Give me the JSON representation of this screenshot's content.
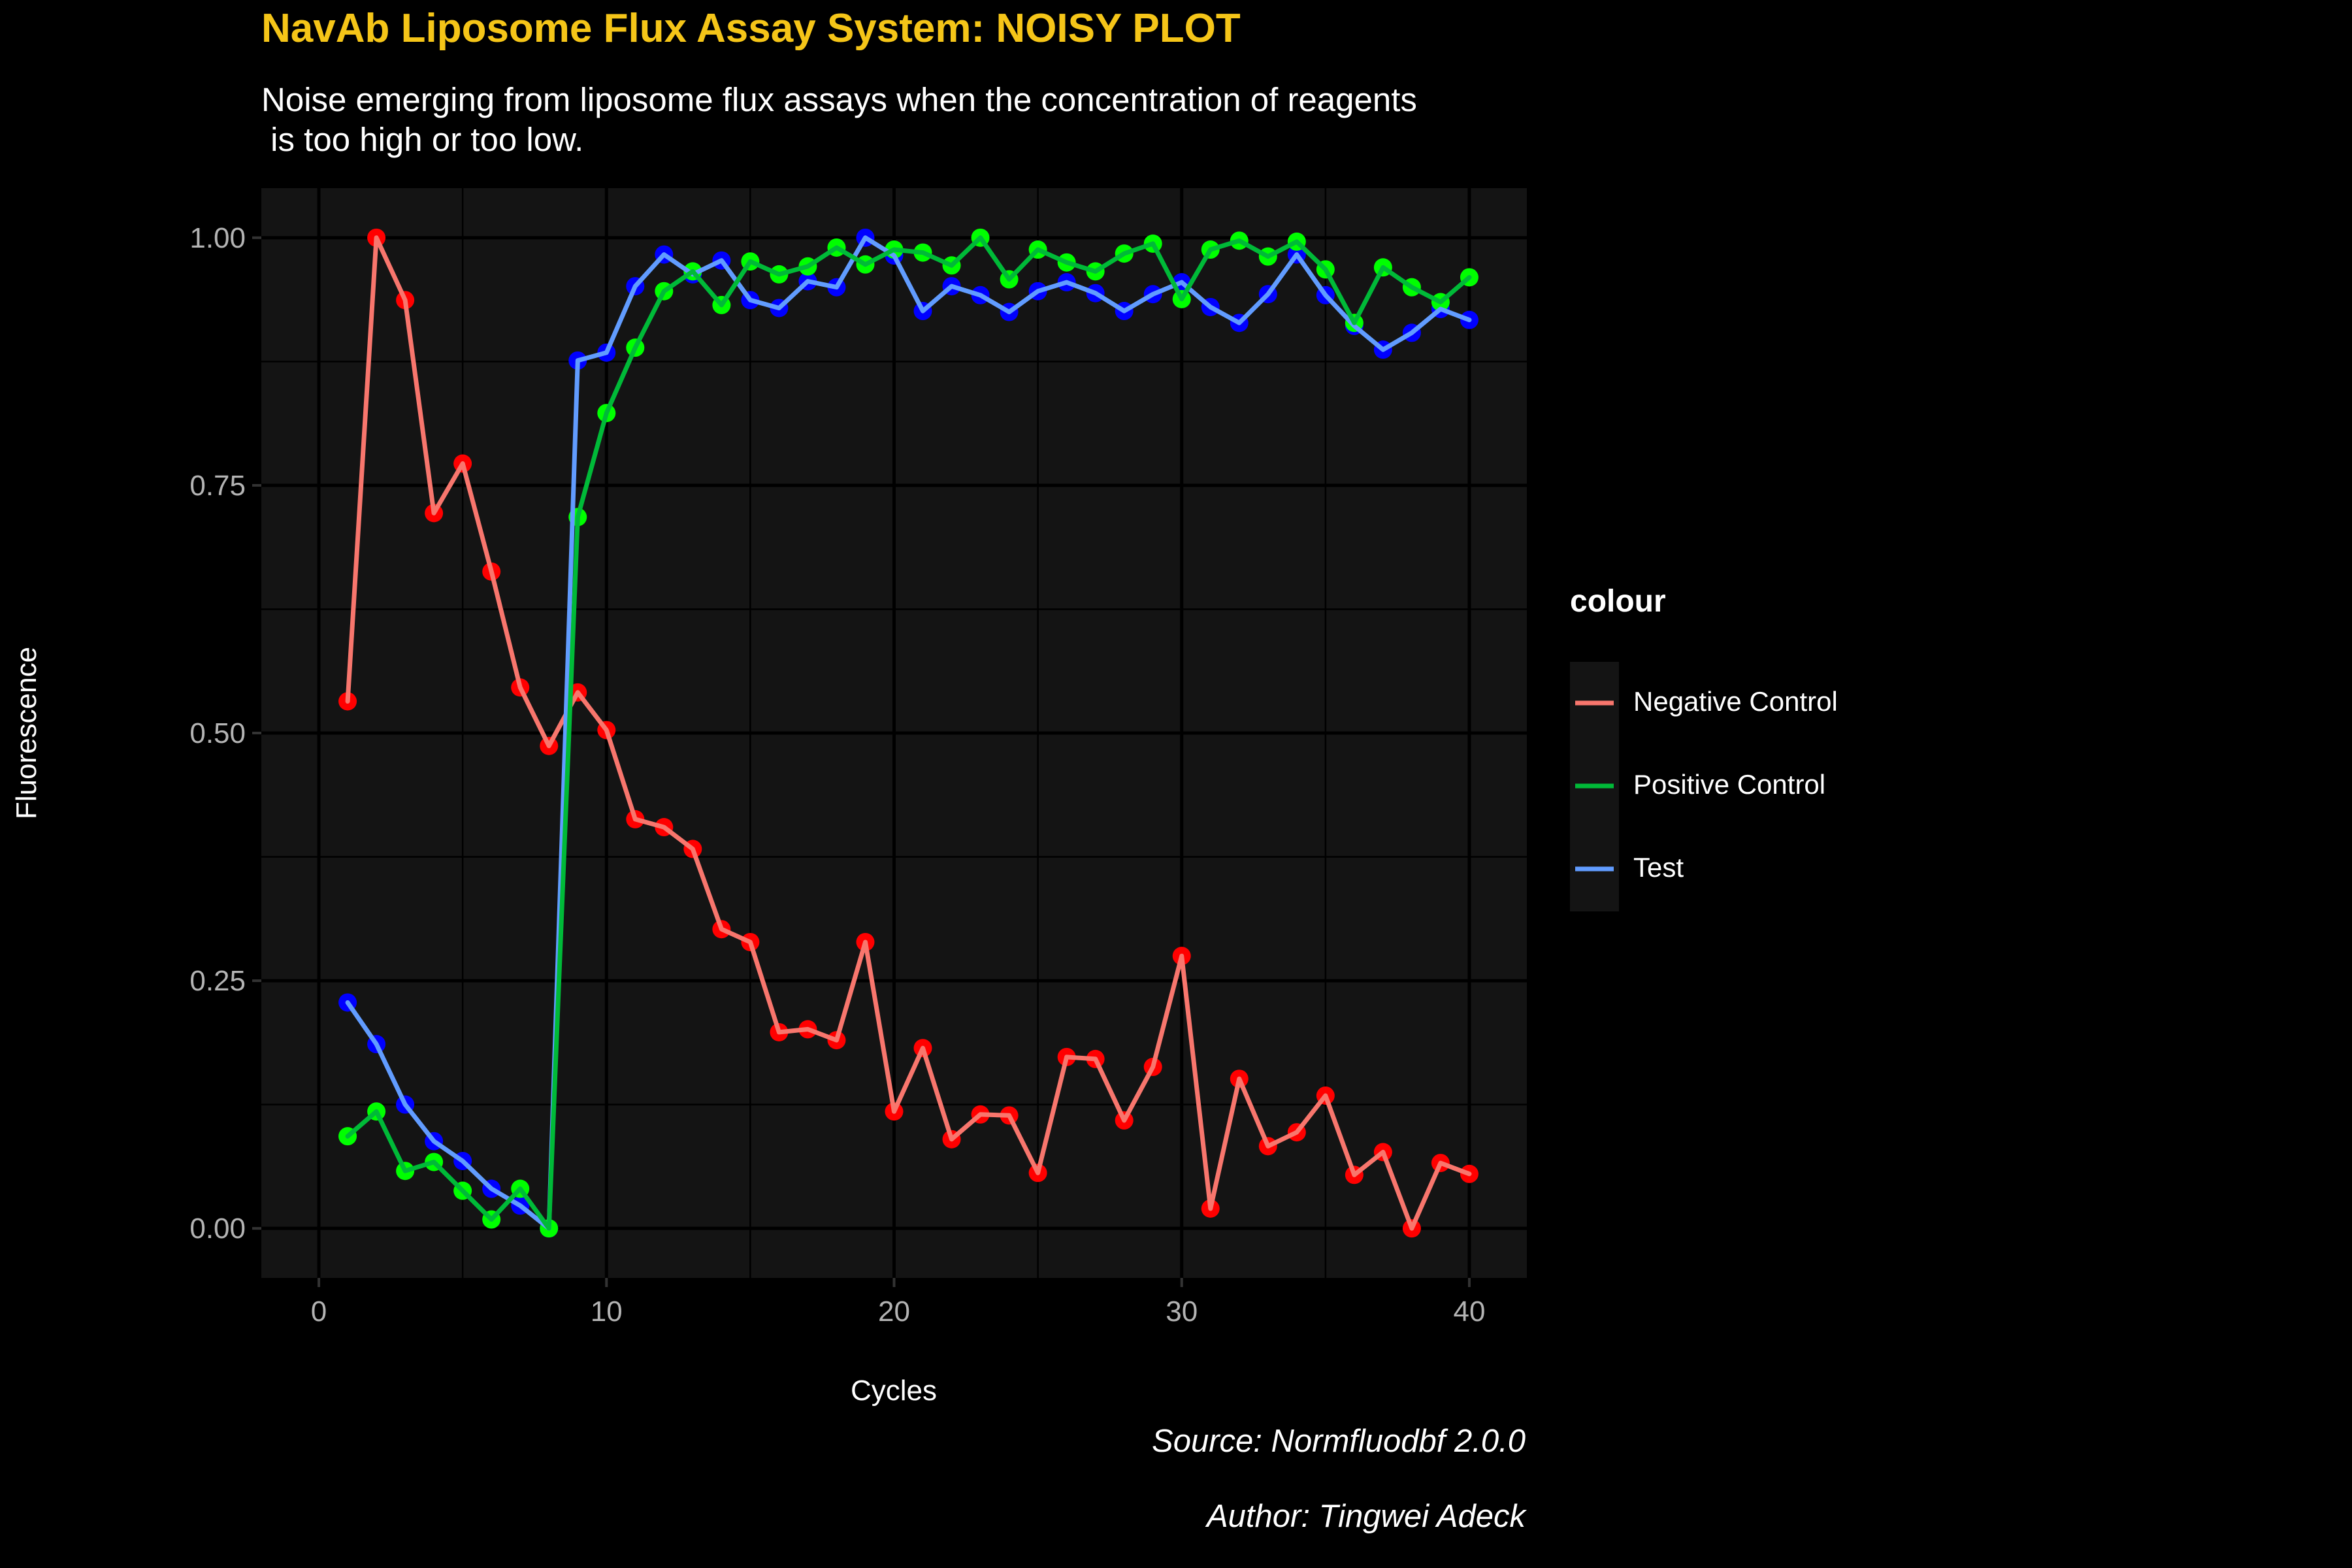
{
  "title": "NavAb Liposome Flux Assay System: NOISY PLOT",
  "subtitle": "Noise emerging from liposome flux assays when the concentration of reagents\n is too high or too low.",
  "caption_source": "Source: Normfluodbf 2.0.0",
  "caption_author": "Author: Tingwei Adeck",
  "colors": {
    "background": "#000000",
    "panel": "#141414",
    "grid": "#000000",
    "title": "#F5C518",
    "negative_line": "#F8766D",
    "negative_point": "#FF0000",
    "positive_line": "#00BA38",
    "positive_point": "#00FF00",
    "test_line": "#619CFF",
    "test_point": "#0000FF"
  },
  "chart_data": {
    "type": "line",
    "title": "NavAb Liposome Flux Assay System: NOISY PLOT",
    "xlabel": "Cycles",
    "ylabel": "Fluorescence",
    "xlim": [
      -2,
      42
    ],
    "ylim": [
      -0.05,
      1.05
    ],
    "x_ticks": [
      0,
      10,
      20,
      30,
      40
    ],
    "x_tick_labels": [
      "0",
      "10",
      "20",
      "30",
      "40"
    ],
    "y_ticks": [
      0,
      0.25,
      0.5,
      0.75,
      1
    ],
    "y_tick_labels": [
      "0.00",
      "0.25",
      "0.50",
      "0.75",
      "1.00"
    ],
    "grid": true,
    "legend_title": "colour",
    "legend_position": "right",
    "x": [
      1,
      2,
      3,
      4,
      5,
      6,
      7,
      8,
      9,
      10,
      11,
      12,
      13,
      14,
      15,
      16,
      17,
      18,
      19,
      20,
      21,
      22,
      23,
      24,
      25,
      26,
      27,
      28,
      29,
      30,
      31,
      32,
      33,
      34,
      35,
      36,
      37,
      38,
      39,
      40
    ],
    "series": [
      {
        "name": "Negative Control",
        "line_color": "#F8766D",
        "point_color": "#FF0000",
        "values": [
          0.532,
          1.0,
          0.937,
          0.722,
          0.772,
          0.663,
          0.546,
          0.487,
          0.541,
          0.503,
          0.413,
          0.405,
          0.383,
          0.302,
          0.289,
          0.198,
          0.201,
          0.19,
          0.289,
          0.118,
          0.182,
          0.09,
          0.115,
          0.114,
          0.056,
          0.173,
          0.171,
          0.109,
          0.163,
          0.275,
          0.02,
          0.151,
          0.083,
          0.097,
          0.134,
          0.054,
          0.077,
          0.0,
          0.066,
          0.055
        ]
      },
      {
        "name": "Positive Control",
        "line_color": "#00BA38",
        "point_color": "#00FF00",
        "values": [
          0.093,
          0.118,
          0.058,
          0.067,
          0.038,
          0.009,
          0.04,
          0.0,
          0.718,
          0.823,
          0.889,
          0.946,
          0.966,
          0.932,
          0.976,
          0.963,
          0.971,
          0.99,
          0.973,
          0.988,
          0.985,
          0.972,
          1.0,
          0.958,
          0.988,
          0.975,
          0.966,
          0.984,
          0.994,
          0.938,
          0.988,
          0.997,
          0.981,
          0.996,
          0.968,
          0.914,
          0.97,
          0.95,
          0.935,
          0.96
        ]
      },
      {
        "name": "Test",
        "line_color": "#619CFF",
        "point_color": "#0000FF",
        "values": [
          0.228,
          0.186,
          0.125,
          0.088,
          0.068,
          0.04,
          0.023,
          0.0,
          0.876,
          0.884,
          0.951,
          0.983,
          0.963,
          0.977,
          0.937,
          0.929,
          0.956,
          0.95,
          1.0,
          0.982,
          0.926,
          0.951,
          0.942,
          0.925,
          0.946,
          0.955,
          0.944,
          0.926,
          0.943,
          0.955,
          0.93,
          0.914,
          0.943,
          0.983,
          0.942,
          0.911,
          0.887,
          0.904,
          0.928,
          0.917
        ]
      }
    ]
  }
}
